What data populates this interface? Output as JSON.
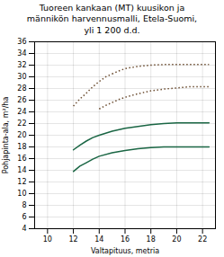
{
  "chart_data": {
    "type": "line",
    "title": "Tuoreen kankaan (MT) kuusikon ja\nmännikön harvennusmalli, Etela-Suomi,\nyli 1 200 d.d.",
    "xlabel": "Valtapituus, metria",
    "ylabel": "Pohjapinta-ala, m²/ha",
    "xlim": [
      9,
      23
    ],
    "ylim": [
      4,
      36
    ],
    "xticks": [
      10,
      12,
      14,
      16,
      18,
      20,
      22
    ],
    "yticks": [
      4,
      6,
      8,
      10,
      12,
      14,
      16,
      18,
      20,
      22,
      24,
      26,
      28,
      30,
      32,
      34,
      36
    ],
    "grid": true,
    "series": [
      {
        "color": "#1a6644",
        "line_style": "solid",
        "x": [
          12.0,
          12.5,
          13.0,
          13.5,
          14.0,
          15.0,
          16.0,
          17.0,
          18.0,
          19.0,
          20.0,
          21.0,
          22.0,
          22.5
        ],
        "values": [
          17.5,
          18.3,
          19.0,
          19.6,
          20.0,
          20.7,
          21.2,
          21.5,
          21.8,
          22.0,
          22.1,
          22.1,
          22.1,
          22.1
        ]
      },
      {
        "color": "#1a6644",
        "line_style": "solid",
        "x": [
          12.0,
          12.5,
          13.0,
          13.5,
          14.0,
          15.0,
          16.0,
          17.0,
          18.0,
          19.0,
          20.0,
          21.0,
          22.0,
          22.5
        ],
        "values": [
          13.8,
          14.7,
          15.3,
          15.9,
          16.4,
          17.0,
          17.4,
          17.7,
          17.9,
          18.0,
          18.0,
          18.0,
          18.0,
          18.0
        ]
      },
      {
        "color": "#6b4c30",
        "line_style": "dotted",
        "x": [
          12.0,
          12.5,
          13.0,
          13.5,
          14.0,
          14.5,
          15.0
        ],
        "values": [
          25.0,
          26.2,
          27.2,
          28.3,
          29.2,
          30.0,
          30.5
        ]
      },
      {
        "color": "#6b4c30",
        "line_style": "dotted",
        "x": [
          15.0,
          15.5,
          16.0,
          17.0,
          18.0,
          19.0,
          20.0,
          21.0,
          22.0,
          22.5
        ],
        "values": [
          30.5,
          31.0,
          31.4,
          31.8,
          32.0,
          32.1,
          32.1,
          32.1,
          32.1,
          32.1
        ]
      },
      {
        "color": "#6b4c30",
        "line_style": "dotted",
        "x": [
          14.0,
          14.5,
          15.0,
          15.5,
          16.0,
          17.0,
          18.0,
          19.0,
          20.0,
          21.0,
          22.0,
          22.5
        ],
        "values": [
          24.5,
          25.1,
          25.6,
          26.1,
          26.5,
          27.1,
          27.6,
          27.9,
          28.1,
          28.3,
          28.3,
          28.3
        ]
      }
    ]
  }
}
